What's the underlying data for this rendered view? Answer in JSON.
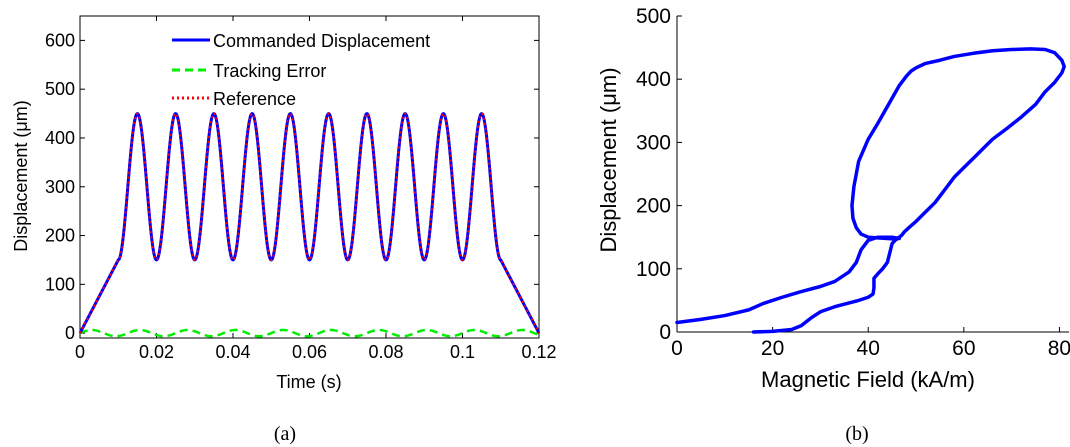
{
  "chart_data": [
    {
      "type": "line",
      "xlabel": "Time (s)",
      "ylabel": "Displacement (μm)",
      "xlim": [
        0,
        0.12
      ],
      "ylim": [
        -10,
        650
      ],
      "xticks": [
        0,
        0.02,
        0.04,
        0.06,
        0.08,
        0.1,
        0.12
      ],
      "xtick_labels": [
        "0",
        "0.02",
        "0.04",
        "0.06",
        "0.08",
        "0.1",
        "0.12"
      ],
      "yticks": [
        0,
        100,
        200,
        300,
        400,
        500,
        600
      ],
      "ytick_labels": [
        "0",
        "100",
        "200",
        "300",
        "400",
        "500",
        "600"
      ],
      "legend_position": "top",
      "series": [
        {
          "name": "Commanded Displacement",
          "color": "#0000ff",
          "style": "solid",
          "description": "ramp 0→150 over 0–0.01 s, 9 sinusoidal cycles between 150 and 450 with period 0.01 s (peaks at 0.015…0.105 s), ramp 150→0 over 0.11–0.12 s"
        },
        {
          "name": "Tracking Error",
          "color": "#00ee00",
          "style": "dashed",
          "amplitude": 8
        },
        {
          "name": "Reference",
          "color": "#ff0000",
          "style": "dotted"
        }
      ],
      "signal": {
        "t_ramp_up_end": 0.01,
        "t_ramp_down_start": 0.11,
        "t_end": 0.12,
        "min": 150,
        "max": 450,
        "period": 0.01
      }
    },
    {
      "type": "line",
      "xlabel": "Magnetic Field (kA/m)",
      "ylabel": "Displacement (μm)",
      "xlim": [
        0,
        82
      ],
      "ylim": [
        0,
        500
      ],
      "xticks": [
        0,
        20,
        40,
        60,
        80
      ],
      "xtick_labels": [
        "0",
        "20",
        "40",
        "60",
        "80"
      ],
      "yticks": [
        0,
        100,
        200,
        300,
        400,
        500
      ],
      "ytick_labels": [
        "0",
        "100",
        "200",
        "300",
        "400",
        "500"
      ],
      "series": [
        {
          "name": "",
          "color": "#0000ff",
          "style": "solid",
          "x": [
            16,
            20,
            24,
            26,
            28,
            30,
            33,
            36,
            38,
            40,
            41,
            41.2,
            41.2,
            42,
            43,
            44,
            44.5,
            45,
            46
          ],
          "y": [
            0,
            1,
            4,
            10,
            22,
            32,
            40,
            46,
            50,
            55,
            60,
            70,
            85,
            92,
            100,
            110,
            125,
            140,
            148
          ]
        },
        {
          "name": "",
          "color": "#0000ff",
          "style": "solid",
          "x": [
            0,
            5,
            10,
            15,
            18,
            22,
            26,
            30,
            33,
            36,
            37.5,
            38.5,
            40,
            42,
            45,
            46.5
          ],
          "y": [
            15,
            20,
            26,
            35,
            45,
            55,
            64,
            72,
            80,
            95,
            110,
            130,
            145,
            150,
            150,
            148
          ]
        },
        {
          "name": "",
          "color": "#0000ff",
          "style": "solid",
          "x": [
            46,
            44,
            42,
            40,
            38.5,
            37.5,
            36.8,
            36.6,
            37,
            38,
            40,
            42,
            43.5,
            45,
            46.5,
            48,
            49,
            50,
            52,
            55,
            58,
            62,
            66,
            70,
            74,
            77,
            79,
            80.5,
            81,
            80.5,
            79,
            77,
            75,
            72,
            69,
            66,
            64,
            62,
            60,
            58,
            56,
            54,
            52,
            50,
            48.5,
            47.5,
            47,
            46.5,
            46
          ],
          "y": [
            147,
            148,
            149,
            150,
            155,
            165,
            180,
            200,
            230,
            270,
            305,
            330,
            350,
            370,
            390,
            405,
            413,
            418,
            425,
            430,
            436,
            441,
            445,
            447,
            448,
            447,
            442,
            430,
            420,
            410,
            395,
            380,
            360,
            340,
            322,
            305,
            290,
            275,
            260,
            245,
            225,
            205,
            190,
            175,
            165,
            158,
            153,
            150,
            148
          ]
        }
      ]
    }
  ],
  "captions": {
    "a": "(a)",
    "b": "(b)"
  }
}
